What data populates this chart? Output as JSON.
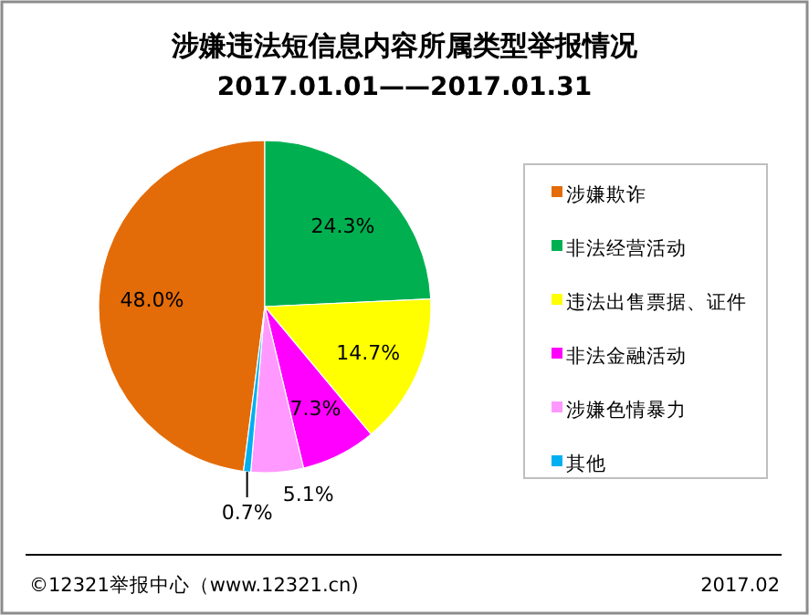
{
  "chart_data": {
    "type": "pie",
    "title": "涉嫌违法短信息内容所属类型举报情况",
    "subtitle": "2017.01.01——2017.01.31",
    "categories": [
      "涉嫌欺诈",
      "非法经营活动",
      "违法出售票据、证件",
      "非法金融活动",
      "涉嫌色情暴力",
      "其他"
    ],
    "values": [
      48.0,
      24.3,
      14.7,
      7.3,
      5.1,
      0.7
    ],
    "value_labels": [
      "48.0%",
      "24.3%",
      "14.7%",
      "7.3%",
      "5.1%",
      "0.7%"
    ],
    "colors": [
      "#e36c09",
      "#00b050",
      "#ffff00",
      "#ff00ff",
      "#ff99ff",
      "#00b0f0"
    ],
    "legend": "right",
    "annotations": [
      "©12321举报中心（www.12321.cn)",
      "2017.02"
    ]
  }
}
